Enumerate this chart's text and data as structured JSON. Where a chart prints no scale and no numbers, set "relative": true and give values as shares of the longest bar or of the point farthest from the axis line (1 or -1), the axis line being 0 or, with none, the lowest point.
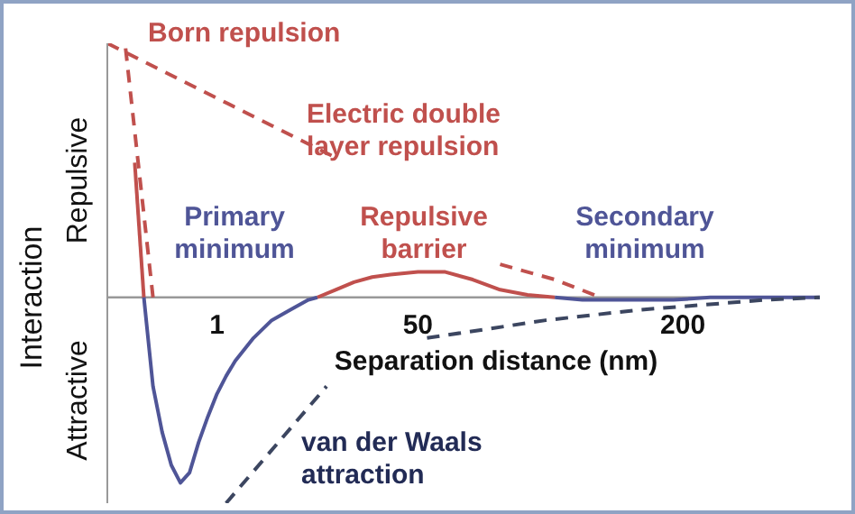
{
  "chart_data": {
    "type": "line",
    "relative": true,
    "ylabel": "Interaction",
    "xlabel": "Separation distance (nm)",
    "categories": [
      null,
      null,
      null,
      null,
      null,
      null,
      null,
      null,
      null,
      null,
      null,
      null,
      "1",
      null,
      null,
      null,
      null,
      null,
      null,
      null,
      null,
      null,
      null,
      null,
      null,
      null,
      null,
      null,
      null,
      null,
      null,
      null,
      null,
      null,
      "50",
      null,
      null,
      null,
      null,
      null,
      null,
      null,
      null,
      null,
      null,
      null,
      null,
      null,
      null,
      null,
      null,
      null,
      null,
      null,
      null,
      null,
      null,
      null,
      null,
      null,
      null,
      null,
      null,
      "200",
      null,
      null,
      null,
      null,
      null,
      null,
      null,
      null,
      null,
      null,
      null,
      null,
      null,
      null,
      null
    ],
    "annotations": [
      "Born repulsion",
      "Electric double layer repulsion",
      "Primary minimum",
      "Repulsive barrier",
      "Secondary minimum",
      "van der Waals attraction",
      "Repulsive",
      "Attractive"
    ],
    "series": [
      {
        "color": "#c0504d",
        "line_style": "solid",
        "values": [
          null,
          null,
          null,
          0.53,
          0,
          null,
          null,
          null,
          null,
          null,
          null,
          null,
          null,
          null,
          null,
          null,
          null,
          null,
          null,
          null,
          null,
          null,
          null,
          null,
          null,
          null,
          null,
          null,
          null,
          null,
          null,
          null,
          null,
          null,
          null,
          null,
          null,
          null,
          null,
          null,
          null,
          null,
          null,
          null,
          null,
          null,
          null,
          null,
          null,
          null,
          null,
          null,
          null,
          null,
          null,
          null,
          null,
          null,
          null,
          null,
          null,
          null,
          null,
          null,
          null,
          null,
          null,
          null,
          null,
          null,
          null,
          null,
          null,
          null,
          null,
          null,
          null,
          null,
          null
        ]
      },
      {
        "color": "#4f5597",
        "line_style": "solid",
        "values": [
          null,
          null,
          null,
          null,
          0,
          -0.35,
          -0.53,
          -0.66,
          -0.73,
          -0.69,
          -0.57,
          -0.47,
          -0.38,
          -0.31,
          -0.25,
          null,
          -0.16,
          null,
          -0.09,
          null,
          -0.05,
          null,
          -0.01,
          0,
          null,
          null,
          null,
          null,
          null,
          null,
          null,
          null,
          null,
          null,
          null,
          null,
          null,
          null,
          null,
          null,
          null,
          null,
          null,
          null,
          null,
          null,
          null,
          null,
          null,
          null,
          null,
          null,
          null,
          null,
          null,
          null,
          null,
          null,
          null,
          null,
          null,
          null,
          null,
          null,
          null,
          null,
          null,
          null,
          null,
          null,
          null,
          null,
          null,
          null,
          null,
          null,
          null,
          null,
          null
        ]
      },
      {
        "color": "#c0504d",
        "line_style": "solid",
        "values": [
          null,
          null,
          null,
          null,
          null,
          null,
          null,
          null,
          null,
          null,
          null,
          null,
          null,
          null,
          null,
          null,
          null,
          null,
          null,
          null,
          null,
          null,
          null,
          0,
          null,
          0.03,
          null,
          0.06,
          null,
          0.08,
          null,
          0.09,
          null,
          null,
          0.1,
          null,
          null,
          0.1,
          null,
          null,
          0.07,
          null,
          null,
          0.03,
          null,
          null,
          0.01,
          null,
          null,
          0,
          null,
          null,
          null,
          null,
          null,
          null,
          null,
          null,
          null,
          null,
          null,
          null,
          null,
          null,
          null,
          null,
          null,
          null,
          null,
          null,
          null,
          null,
          null,
          null,
          null,
          null,
          null,
          null,
          null
        ]
      },
      {
        "color": "#4f5597",
        "line_style": "solid",
        "values": [
          null,
          null,
          null,
          null,
          null,
          null,
          null,
          null,
          null,
          null,
          null,
          null,
          null,
          null,
          null,
          null,
          null,
          null,
          null,
          null,
          null,
          null,
          null,
          null,
          null,
          null,
          null,
          null,
          null,
          null,
          null,
          null,
          null,
          null,
          null,
          null,
          null,
          null,
          null,
          null,
          null,
          null,
          null,
          null,
          null,
          null,
          null,
          null,
          null,
          0,
          null,
          null,
          -0.01,
          null,
          null,
          -0.01,
          null,
          null,
          -0.01,
          null,
          null,
          null,
          -0.01,
          null,
          null,
          null,
          0,
          null,
          null,
          null,
          null,
          null,
          null,
          null,
          null,
          null,
          null,
          null,
          0
        ]
      },
      {
        "color": "#c0504d",
        "line_style": "dashed",
        "values": [
          null,
          null,
          0.98,
          null,
          null,
          0,
          null,
          null,
          null,
          null,
          null,
          null,
          null,
          null,
          null,
          null,
          null,
          null,
          null,
          null,
          null,
          null,
          null,
          null,
          null,
          null,
          null,
          null,
          null,
          null,
          null,
          null,
          null,
          null,
          null,
          null,
          null,
          null,
          null,
          null,
          null,
          null,
          null,
          null,
          null,
          null,
          null,
          null,
          null,
          null,
          null,
          null,
          null,
          null,
          null,
          null,
          null,
          null,
          null,
          null,
          null,
          null,
          null,
          null,
          null,
          null,
          null,
          null,
          null,
          null,
          null,
          null,
          null,
          null,
          null,
          null,
          null,
          null,
          null
        ]
      },
      {
        "color": "#c0504d",
        "line_style": "dashed",
        "values": [
          1,
          null,
          null,
          null,
          null,
          null,
          null,
          null,
          null,
          null,
          null,
          null,
          null,
          null,
          null,
          null,
          null,
          null,
          null,
          null,
          null,
          null,
          null,
          null,
          null,
          0.55,
          null,
          null,
          null,
          null,
          null,
          null,
          null,
          null,
          null,
          null,
          null,
          null,
          null,
          null,
          null,
          null,
          null,
          null,
          null,
          null,
          null,
          null,
          null,
          null,
          null,
          null,
          null,
          null,
          null,
          null,
          null,
          null,
          null,
          null,
          null,
          null,
          null,
          null,
          null,
          null,
          null,
          null,
          null,
          null,
          null,
          null,
          null,
          null,
          null,
          null,
          null,
          null,
          null
        ]
      },
      {
        "color": "#c0504d",
        "line_style": "dashed",
        "values": [
          null,
          null,
          null,
          null,
          null,
          null,
          null,
          null,
          null,
          null,
          null,
          null,
          null,
          null,
          null,
          null,
          null,
          null,
          null,
          null,
          null,
          null,
          null,
          null,
          null,
          null,
          null,
          null,
          null,
          null,
          null,
          null,
          null,
          null,
          null,
          null,
          null,
          null,
          null,
          null,
          null,
          null,
          null,
          0.13,
          null,
          null,
          null,
          null,
          null,
          0.07,
          null,
          null,
          null,
          null,
          0,
          null,
          null,
          null,
          null,
          null,
          null,
          null,
          null,
          null,
          null,
          null,
          null,
          null,
          null,
          null,
          null,
          null,
          null,
          null,
          null,
          null,
          null,
          null,
          null
        ]
      },
      {
        "color": "#3c4660",
        "line_style": "dashed",
        "values": [
          null,
          null,
          null,
          null,
          null,
          null,
          null,
          null,
          null,
          null,
          null,
          null,
          null,
          -0.81,
          null,
          null,
          null,
          null,
          null,
          null,
          null,
          null,
          null,
          null,
          -0.35,
          null,
          null,
          null,
          null,
          null,
          null,
          null,
          null,
          null,
          null,
          null,
          null,
          null,
          null,
          null,
          null,
          null,
          null,
          null,
          null,
          null,
          null,
          null,
          null,
          null,
          null,
          null,
          null,
          null,
          null,
          null,
          null,
          null,
          null,
          null,
          null,
          null,
          null,
          null,
          null,
          null,
          null,
          null,
          null,
          null,
          null,
          null,
          null,
          null,
          null,
          null,
          null,
          null,
          null
        ]
      },
      {
        "color": "#3c4660",
        "line_style": "dashed",
        "values": [
          null,
          null,
          null,
          null,
          null,
          null,
          null,
          null,
          null,
          null,
          null,
          null,
          null,
          null,
          null,
          null,
          null,
          null,
          null,
          null,
          null,
          null,
          null,
          null,
          null,
          null,
          null,
          null,
          null,
          null,
          null,
          null,
          null,
          null,
          null,
          -0.16,
          null,
          null,
          null,
          null,
          null,
          null,
          null,
          null,
          null,
          null,
          null,
          null,
          -0.09,
          null,
          null,
          null,
          null,
          null,
          null,
          null,
          null,
          null,
          -0.05,
          null,
          null,
          null,
          null,
          null,
          null,
          null,
          null,
          null,
          null,
          null,
          null,
          null,
          -0.01,
          null,
          null,
          null,
          null,
          null,
          0
        ]
      }
    ]
  }
}
